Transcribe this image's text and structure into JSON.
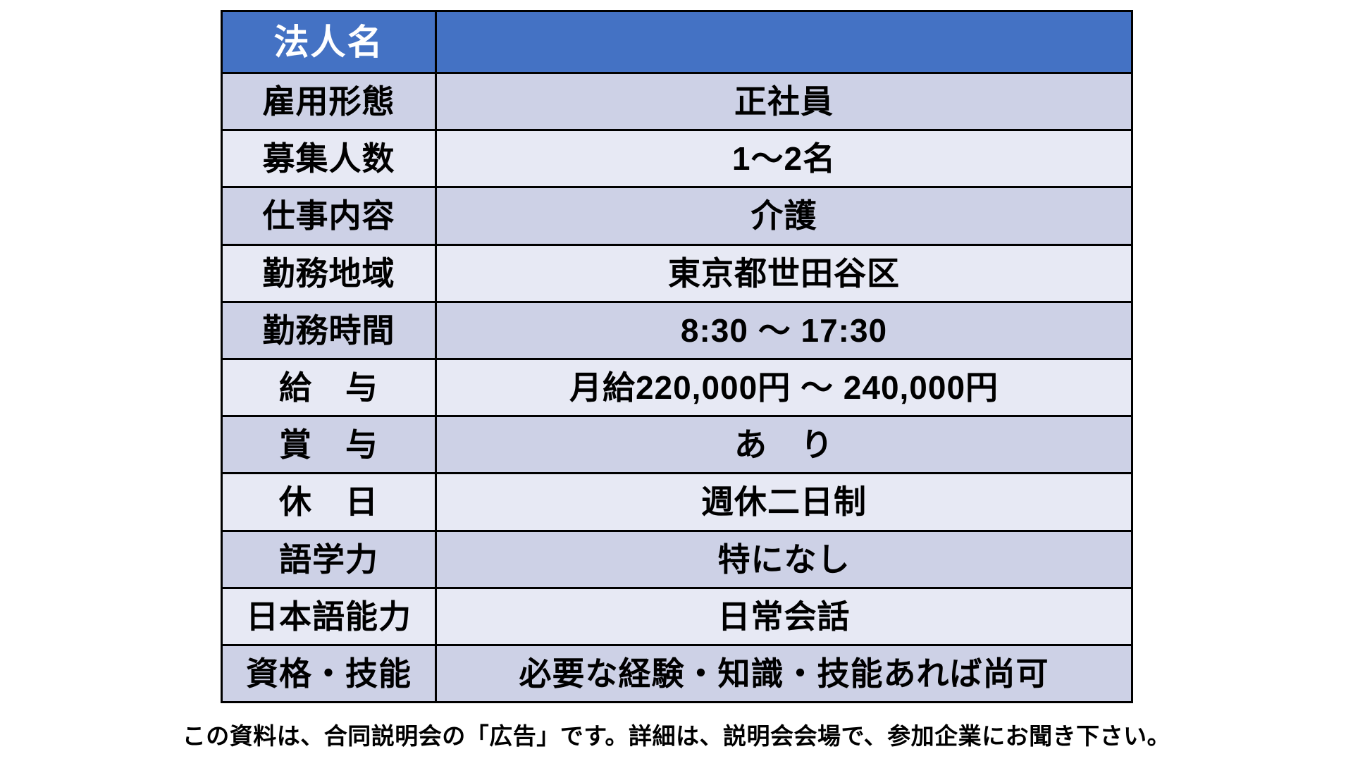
{
  "table": {
    "header": {
      "label": "法人名",
      "value": ""
    },
    "rows": [
      {
        "label": "雇用形態",
        "value": "正社員"
      },
      {
        "label": "募集人数",
        "value": "1～2名"
      },
      {
        "label": "仕事内容",
        "value": "介護"
      },
      {
        "label": "勤務地域",
        "value": "東京都世田谷区"
      },
      {
        "label": "勤務時間",
        "value": "8:30 ～ 17:30"
      },
      {
        "label": "給　与",
        "value": "月給220,000円 ～ 240,000円"
      },
      {
        "label": "賞　与",
        "value": "あ　り"
      },
      {
        "label": "休　日",
        "value": "週休二日制"
      },
      {
        "label": "語学力",
        "value": "特になし"
      },
      {
        "label": "日本語能力",
        "value": "日常会話"
      },
      {
        "label": "資格・技能",
        "value": "必要な経験・知識・技能あれば尚可"
      }
    ]
  },
  "footer": {
    "note": "この資料は、合同説明会の「広告」です。詳細は、説明会会場で、参加企業にお聞き下さい。"
  },
  "colors": {
    "header_bg": "#4472C4",
    "header_text": "#FFFFFF",
    "band_dark": "#CDD1E6",
    "band_light": "#E7E9F4",
    "border": "#000000",
    "text": "#000000",
    "page_bg": "#FFFFFF"
  }
}
